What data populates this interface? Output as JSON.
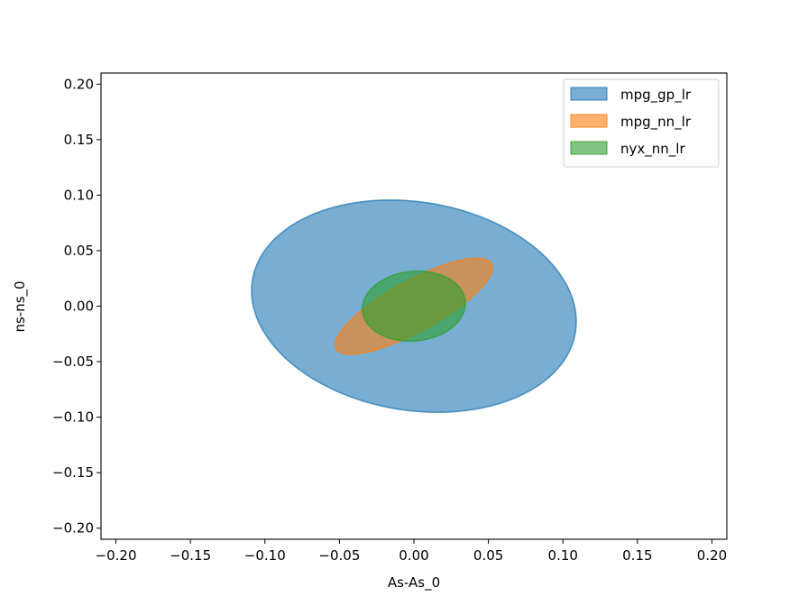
{
  "chart_data": {
    "type": "area",
    "xlabel": "As-As_0",
    "ylabel": "ns-ns_0",
    "xlim": [
      -0.21,
      0.21
    ],
    "ylim": [
      -0.21,
      0.21
    ],
    "xticks": [
      -0.2,
      -0.15,
      -0.1,
      -0.05,
      0.0,
      0.05,
      0.1,
      0.15,
      0.2
    ],
    "yticks": [
      -0.2,
      -0.15,
      -0.1,
      -0.05,
      0.0,
      0.05,
      0.1,
      0.15,
      0.2
    ],
    "xtick_labels": [
      "−0.20",
      "−0.15",
      "−0.10",
      "−0.05",
      "0.00",
      "0.05",
      "0.10",
      "0.15",
      "0.20"
    ],
    "ytick_labels": [
      "−0.20",
      "−0.15",
      "−0.10",
      "−0.05",
      "0.00",
      "0.05",
      "0.10",
      "0.15",
      "0.20"
    ],
    "grid": false,
    "legend_position": "top-right",
    "series": [
      {
        "name": "mpg_gp_lr",
        "color": "#1f77b4",
        "alpha": 0.6,
        "center": [
          0.0,
          0.0
        ],
        "semi_major": 0.112,
        "semi_minor": 0.092,
        "angle_deg": -24
      },
      {
        "name": "mpg_nn_lr",
        "color": "#ff7f0e",
        "alpha": 0.6,
        "center": [
          0.0,
          0.0
        ],
        "semi_major": 0.065,
        "semi_minor": 0.021,
        "angle_deg": 38
      },
      {
        "name": "nyx_nn_lr",
        "color": "#2ca02c",
        "alpha": 0.6,
        "center": [
          0.0,
          0.0
        ],
        "semi_major": 0.035,
        "semi_minor": 0.031,
        "angle_deg": 20
      }
    ]
  }
}
